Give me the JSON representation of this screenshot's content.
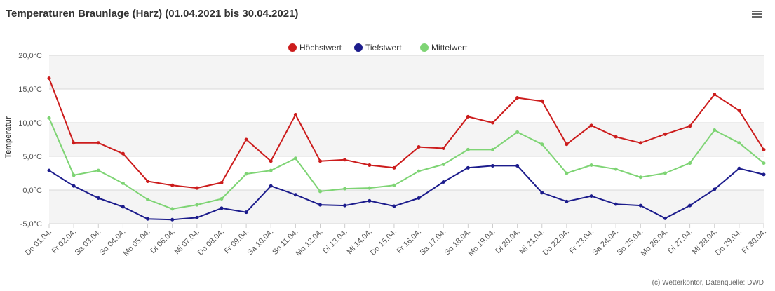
{
  "chart_data": {
    "type": "line",
    "title": "Temperaturen Braunlage (Harz) (01.04.2021 bis 30.04.2021)",
    "ylabel": "Temperatur",
    "xlabel": "",
    "ylim": [
      -5,
      20
    ],
    "yticks": [
      -5,
      0,
      5,
      10,
      15,
      20
    ],
    "ytick_labels": [
      "-5,0°C",
      "0,0°C",
      "5,0°C",
      "10,0°C",
      "15,0°C",
      "20,0°C"
    ],
    "grid": true,
    "legend_position": "top-center",
    "categories": [
      "Do 01.04.",
      "Fr 02.04.",
      "Sa 03.04.",
      "So 04.04.",
      "Mo 05.04.",
      "Di 06.04.",
      "Mi 07.04.",
      "Do 08.04.",
      "Fr 09.04.",
      "Sa 10.04.",
      "So 11.04.",
      "Mo 12.04.",
      "Di 13.04.",
      "Mi 14.04.",
      "Do 15.04.",
      "Fr 16.04.",
      "Sa 17.04.",
      "So 18.04.",
      "Mo 19.04.",
      "Di 20.04.",
      "Mi 21.04.",
      "Do 22.04.",
      "Fr 23.04.",
      "Sa 24.04.",
      "So 25.04.",
      "Mo 26.04.",
      "Di 27.04.",
      "Mi 28.04.",
      "Do 29.04.",
      "Fr 30.04."
    ],
    "series": [
      {
        "name": "Höchstwert",
        "color": "#cc1c1c",
        "values": [
          16.6,
          7.0,
          7.0,
          5.4,
          1.3,
          0.7,
          0.3,
          1.1,
          7.5,
          4.3,
          11.2,
          4.3,
          4.5,
          3.7,
          3.3,
          6.4,
          6.2,
          10.9,
          10.0,
          13.7,
          13.2,
          6.8,
          9.6,
          7.9,
          7.0,
          8.3,
          9.5,
          14.2,
          11.8,
          6.0
        ]
      },
      {
        "name": "Tiefstwert",
        "color": "#1c1c8c",
        "values": [
          2.9,
          0.6,
          -1.2,
          -2.5,
          -4.3,
          -4.4,
          -4.1,
          -2.7,
          -3.3,
          0.6,
          -0.7,
          -2.2,
          -2.3,
          -1.6,
          -2.4,
          -1.2,
          1.2,
          3.3,
          3.6,
          3.6,
          -0.4,
          -1.7,
          -0.9,
          -2.1,
          -2.3,
          -4.2,
          -2.3,
          0.1,
          3.2,
          2.3
        ]
      },
      {
        "name": "Mittelwert",
        "color": "#7ed474",
        "values": [
          10.7,
          2.2,
          2.9,
          1.0,
          -1.4,
          -2.8,
          -2.2,
          -1.3,
          2.4,
          2.9,
          4.7,
          -0.2,
          0.2,
          0.3,
          0.7,
          2.8,
          3.8,
          6.0,
          6.0,
          8.6,
          6.8,
          2.5,
          3.7,
          3.1,
          1.9,
          2.5,
          4.0,
          8.9,
          7.0,
          4.0
        ]
      }
    ]
  },
  "credits": "(c) Wetterkontor, Datenquelle: DWD",
  "menu_icon": "hamburger-menu-icon"
}
